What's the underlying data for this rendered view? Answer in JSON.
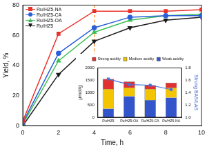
{
  "chart_data": [
    {
      "type": "line",
      "xlabel": "Time, h",
      "ylabel": "Yield, %",
      "xlim": [
        0,
        10
      ],
      "xticks": [
        0,
        2,
        4,
        6,
        8,
        10
      ],
      "ylim": [
        0,
        80
      ],
      "yticks": [
        0,
        20,
        40,
        60,
        80
      ],
      "grid": false,
      "legend": "top-left",
      "x": [
        0,
        2,
        4,
        6,
        8,
        10
      ],
      "series": [
        {
          "name": "Ru/HZ5-NA",
          "color": "#e8332a",
          "marker": "square",
          "values": [
            3,
            61,
            76,
            76,
            76,
            77
          ]
        },
        {
          "name": "Ru/HZ5-CA",
          "color": "#2b5fd9",
          "marker": "circle",
          "values": [
            2,
            48,
            65,
            72,
            73,
            73
          ]
        },
        {
          "name": "Ru/HZ5-OA",
          "color": "#3fbf55",
          "marker": "triangle",
          "values": [
            1,
            43,
            62,
            70,
            73,
            74
          ]
        },
        {
          "name": "Ru/HZ5",
          "color": "#1a1a1a",
          "marker": "triangle_down",
          "values": [
            0,
            34,
            56,
            65,
            70,
            72
          ]
        }
      ],
      "vline": {
        "x": 4,
        "color": "#ff8c1a",
        "line_style": "dashed"
      }
    },
    {
      "type": "bar",
      "stacked": true,
      "categories": [
        "Ru/HZ5",
        "Ru/HZ5-OA",
        "Ru/HZ5-CA",
        "Ru/HZ5-NA"
      ],
      "ylabel": "μmol/g",
      "y2label": "Strong BAS/LAS",
      "ylim": [
        0,
        2000
      ],
      "yticks": [
        0,
        500,
        1000,
        1500,
        2000
      ],
      "y2lim": [
        1,
        1.8
      ],
      "y2ticks": [
        {
          "value": 1,
          "label": "1.0"
        },
        1.2,
        1.4,
        1.6,
        1.8
      ],
      "grid": false,
      "legend": "top",
      "series": [
        {
          "name": "Strong acidity",
          "color": "#e03030",
          "values": [
            400,
            250,
            150,
            200
          ]
        },
        {
          "name": "Medium acidity",
          "color": "#f2c500",
          "values": [
            800,
            350,
            450,
            400
          ]
        },
        {
          "name": "Weak acidity",
          "color": "#3355cc",
          "values": [
            350,
            850,
            700,
            800
          ]
        },
        {
          "type": "line",
          "axis": "y2",
          "color": "#4a6fd6",
          "marker": "square",
          "values": [
            1.62,
            1.53,
            1.52,
            1.45
          ]
        }
      ]
    }
  ]
}
